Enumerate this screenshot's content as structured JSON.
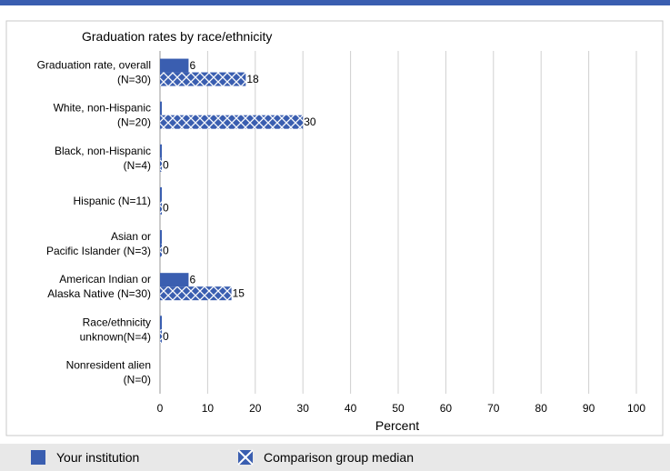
{
  "chart_data": {
    "type": "bar",
    "orientation": "horizontal",
    "title": "Graduation rates by race/ethnicity",
    "xlabel": "Percent",
    "ylabel": "",
    "xlim": [
      0,
      100
    ],
    "x_ticks": [
      0,
      10,
      20,
      30,
      40,
      50,
      60,
      70,
      80,
      90,
      100
    ],
    "grid": true,
    "legend_position": "bottom",
    "categories": [
      [
        "Graduation rate, overall",
        "(N=30)"
      ],
      [
        "White, non-Hispanic",
        "(N=20)"
      ],
      [
        "Black, non-Hispanic",
        "(N=4)"
      ],
      [
        "Hispanic (N=11)"
      ],
      [
        "Asian or",
        "Pacific Islander (N=3)"
      ],
      [
        "American Indian or",
        "Alaska Native (N=30)"
      ],
      [
        "Race/ethnicity",
        "unknown(N=4)"
      ],
      [
        "Nonresident alien",
        "(N=0)"
      ]
    ],
    "series": [
      {
        "name": "Your institution",
        "values": [
          6,
          0,
          0,
          0,
          0,
          6,
          0,
          null
        ],
        "data_labels": [
          "6",
          "",
          "",
          "",
          "",
          "6",
          "",
          ""
        ],
        "color": "#3a5eb0",
        "pattern": "solid"
      },
      {
        "name": "Comparison group median",
        "values": [
          18,
          30,
          0,
          0,
          0,
          15,
          0,
          null
        ],
        "data_labels": [
          "18",
          "30",
          "0",
          "0",
          "0",
          "15",
          "0",
          ""
        ],
        "color": "#3a5eb0",
        "pattern": "crosshatch"
      }
    ],
    "colors": {
      "top_band": "#3a5eb0",
      "bar": "#3a5eb0",
      "grid": "#d0d0d0",
      "frame": "#c8c8c8",
      "legend_bg": "#e8e8e8"
    }
  }
}
